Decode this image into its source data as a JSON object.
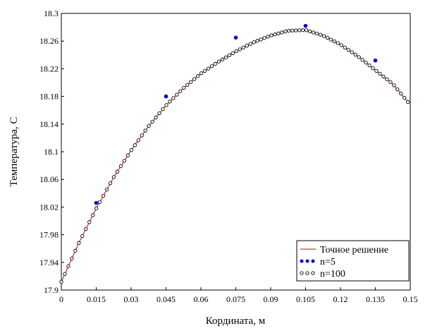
{
  "chart_data": {
    "type": "line",
    "title": "",
    "xlabel": "Кордината, м",
    "ylabel": "Температура, С",
    "xlim": [
      0,
      0.15
    ],
    "ylim": [
      17.9,
      18.3
    ],
    "x_ticks": [
      "0",
      "0.015",
      "0.03",
      "0.045",
      "0.06",
      "0.075",
      "0.09",
      "0.105",
      "0.12",
      "0.135",
      "0.15"
    ],
    "x_tick_values": [
      0,
      0.015,
      0.03,
      0.045,
      0.06,
      0.075,
      0.09,
      0.105,
      0.12,
      0.135,
      0.15
    ],
    "y_ticks": [
      "17.9",
      "17.94",
      "17.98",
      "18.02",
      "18.06",
      "18.1",
      "18.14",
      "18.18",
      "18.22",
      "18.26",
      "18.3"
    ],
    "y_tick_values": [
      17.9,
      17.94,
      17.98,
      18.02,
      18.06,
      18.1,
      18.14,
      18.18,
      18.22,
      18.26,
      18.3
    ],
    "grid": false,
    "legend_position": "bottom-right",
    "series": [
      {
        "name": "Точное решение",
        "style": "line",
        "color": "#cc0000",
        "x": [
          0,
          0.0075,
          0.015,
          0.0225,
          0.03,
          0.0375,
          0.045,
          0.0525,
          0.06,
          0.0675,
          0.075,
          0.0825,
          0.09,
          0.0975,
          0.105,
          0.1125,
          0.12,
          0.1275,
          0.135,
          0.1425,
          0.149
        ],
        "y": [
          17.912,
          17.968,
          18.018,
          18.063,
          18.102,
          18.137,
          18.167,
          18.192,
          18.213,
          18.23,
          18.245,
          18.258,
          18.268,
          18.275,
          18.276,
          18.268,
          18.255,
          18.238,
          18.218,
          18.198,
          18.172
        ]
      },
      {
        "name": "n=5",
        "style": "filled-dots",
        "color": "#0000cc",
        "x": [
          0.015,
          0.045,
          0.075,
          0.105,
          0.135
        ],
        "y": [
          18.026,
          18.18,
          18.265,
          18.282,
          18.232
        ]
      },
      {
        "name": "n=100",
        "style": "open-circles",
        "color": "#000000",
        "n_points": 100,
        "x_start": 0,
        "x_end": 0.149
      }
    ]
  }
}
